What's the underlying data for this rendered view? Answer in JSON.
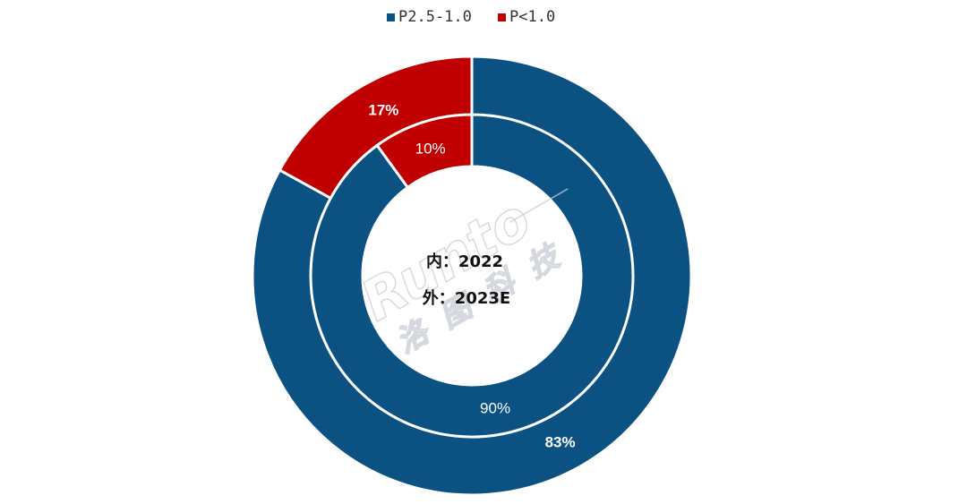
{
  "chart_data": {
    "type": "donut",
    "series": [
      {
        "name": "外：2023E",
        "ring": "outer",
        "values": [
          {
            "category": "P2.5-1.0",
            "value": 83,
            "label": "83%"
          },
          {
            "category": "P<1.0",
            "value": 17,
            "label": "17%"
          }
        ]
      },
      {
        "name": "内：2022",
        "ring": "inner",
        "values": [
          {
            "category": "P2.5-1.0",
            "value": 90,
            "label": "90%"
          },
          {
            "category": "P<1.0",
            "value": 10,
            "label": "10%"
          }
        ]
      }
    ],
    "legend": {
      "placement": "top-center",
      "items": [
        {
          "label": "P2.5-1.0",
          "color": "#0b5283"
        },
        {
          "label": "P<1.0",
          "color": "#c00000"
        }
      ]
    },
    "center_labels": [
      "内：2022",
      "外：2023E"
    ]
  },
  "watermark": {
    "text": "Runto",
    "subtext": "洛图科技"
  }
}
